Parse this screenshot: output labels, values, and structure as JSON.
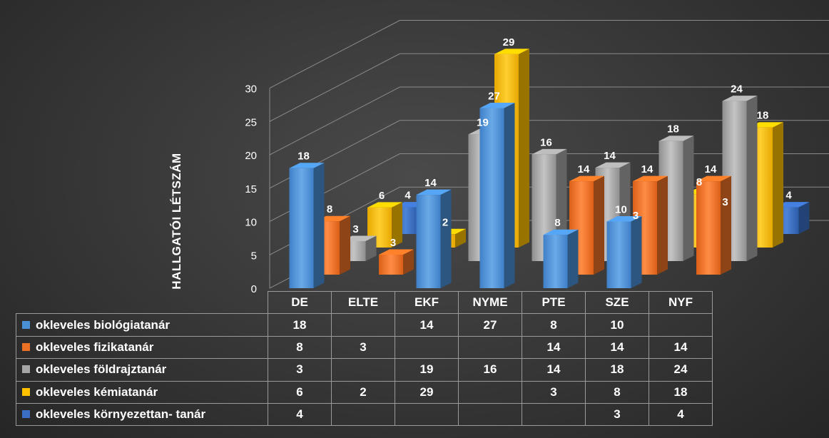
{
  "chart_data": {
    "type": "bar",
    "categories": [
      "DE",
      "ELTE",
      "EKF",
      "NYME",
      "PTE",
      "SZE",
      "NYF"
    ],
    "ylabel": "HALLGATÓI LÉTSZÁM",
    "ylim": [
      0,
      30
    ],
    "yticks": [
      0,
      5,
      10,
      15,
      20,
      25,
      30
    ],
    "grid": true,
    "legend": "table-bottom",
    "series": [
      {
        "name": "okleveles biológiatanár",
        "color": "#4a90d6",
        "values": [
          18,
          null,
          14,
          27,
          8,
          10,
          null
        ]
      },
      {
        "name": "okleveles fizikatanár",
        "color": "#ed7125",
        "values": [
          8,
          3,
          null,
          null,
          14,
          14,
          14
        ]
      },
      {
        "name": "okleveles földrajztanár",
        "color": "#a5a5a5",
        "values": [
          3,
          null,
          19,
          16,
          14,
          18,
          24
        ]
      },
      {
        "name": "okleveles kémiatanár",
        "color": "#ffc000",
        "values": [
          6,
          2,
          29,
          null,
          3,
          8,
          18
        ]
      },
      {
        "name": "okleveles környezettan- tanár",
        "color": "#3a6fc4",
        "values": [
          4,
          null,
          null,
          null,
          null,
          3,
          4
        ]
      }
    ]
  }
}
